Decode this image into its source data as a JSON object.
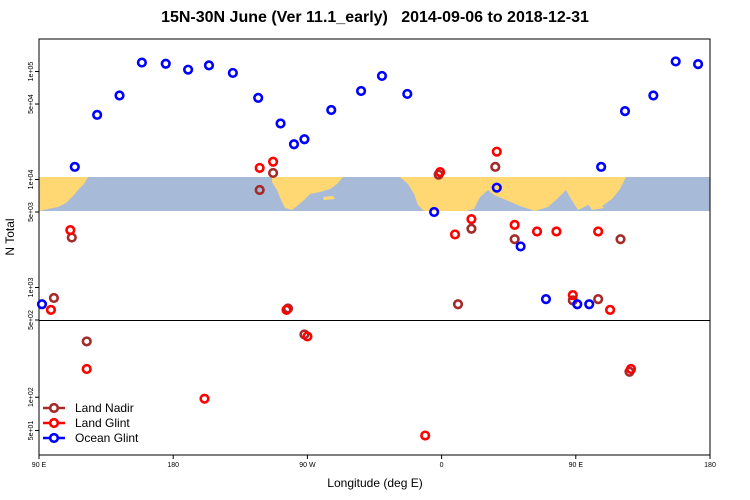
{
  "chart_data": {
    "type": "scatter",
    "title": "15N-30N June (Ver 11.1_early)   2014-09-06 to 2018-12-31",
    "xlabel": "Longitude (deg E)",
    "ylabel": "N Total",
    "x_ticks": [
      {
        "value": 90,
        "label": "90 E"
      },
      {
        "value": 180,
        "label": "180"
      },
      {
        "value": 270,
        "label": "90 W"
      },
      {
        "value": 360,
        "label": "0"
      },
      {
        "value": 450,
        "label": "90 E"
      },
      {
        "value": 540,
        "label": "180"
      }
    ],
    "xlim": [
      90,
      540
    ],
    "y_ticks_upper": [
      {
        "value": 100000,
        "label": "1e+05"
      },
      {
        "value": 50000,
        "label": "5e+04"
      },
      {
        "value": 10000,
        "label": "1e+04"
      },
      {
        "value": 5000,
        "label": "5e+03"
      },
      {
        "value": 1000,
        "label": "1e+03"
      },
      {
        "value": 500,
        "label": "5e+02"
      }
    ],
    "y_ticks_lower": [
      {
        "value": 100,
        "label": "1e+02"
      },
      {
        "value": 50,
        "label": "5e+01"
      }
    ],
    "ylim_upper": [
      500,
      200000
    ],
    "ylim_lower": [
      30,
      500
    ],
    "legend_position": "bottom-left",
    "series": [
      {
        "name": "Land Nadir",
        "color": "#a52a2a",
        "points": [
          [
            100,
            800
          ],
          [
            112,
            2900
          ],
          [
            122,
            320
          ],
          [
            238,
            8000
          ],
          [
            247,
            11500
          ],
          [
            257,
            640
          ],
          [
            268,
            370
          ],
          [
            358,
            11100
          ],
          [
            371,
            700
          ],
          [
            380,
            3500
          ],
          [
            396,
            13100
          ],
          [
            409,
            2800
          ],
          [
            448,
            760
          ],
          [
            465,
            780
          ],
          [
            480,
            2800
          ],
          [
            486,
            170
          ]
        ]
      },
      {
        "name": "Land Glint",
        "color": "#ff0000",
        "points": [
          [
            98,
            620
          ],
          [
            111,
            3400
          ],
          [
            122,
            180
          ],
          [
            201,
            97
          ],
          [
            238,
            12800
          ],
          [
            247,
            14600
          ],
          [
            256,
            620
          ],
          [
            270,
            355
          ],
          [
            349,
            45
          ],
          [
            359,
            11700
          ],
          [
            369,
            3100
          ],
          [
            380,
            4300
          ],
          [
            397,
            18100
          ],
          [
            409,
            3800
          ],
          [
            424,
            3300
          ],
          [
            437,
            3300
          ],
          [
            448,
            850
          ],
          [
            465,
            3300
          ],
          [
            473,
            620
          ],
          [
            487,
            180
          ]
        ]
      },
      {
        "name": "Ocean Glint",
        "color": "#0000ff",
        "points": [
          [
            92,
            700
          ],
          [
            114,
            13100
          ],
          [
            129,
            39700
          ],
          [
            144,
            60000
          ],
          [
            159,
            121000
          ],
          [
            175,
            118000
          ],
          [
            190,
            104000
          ],
          [
            204,
            114000
          ],
          [
            220,
            97000
          ],
          [
            237,
            57000
          ],
          [
            252,
            33000
          ],
          [
            261,
            21200
          ],
          [
            268,
            23600
          ],
          [
            286,
            44000
          ],
          [
            306,
            66000
          ],
          [
            320,
            91000
          ],
          [
            337,
            62000
          ],
          [
            355,
            5000
          ],
          [
            397,
            8400
          ],
          [
            413,
            2400
          ],
          [
            430,
            780
          ],
          [
            451,
            700
          ],
          [
            459,
            700
          ],
          [
            467,
            13100
          ],
          [
            483,
            43000
          ],
          [
            502,
            60000
          ],
          [
            517,
            124000
          ],
          [
            532,
            117000
          ]
        ]
      }
    ]
  }
}
